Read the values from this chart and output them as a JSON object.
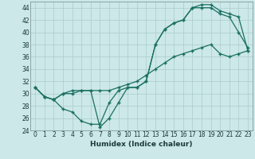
{
  "xlabel": "Humidex (Indice chaleur)",
  "bg_color": "#cce8e8",
  "grid_color": "#aacccc",
  "line_color": "#1a7060",
  "xlim": [
    -0.5,
    23.5
  ],
  "ylim": [
    24,
    45
  ],
  "xticks": [
    0,
    1,
    2,
    3,
    4,
    5,
    6,
    7,
    8,
    9,
    10,
    11,
    12,
    13,
    14,
    15,
    16,
    17,
    18,
    19,
    20,
    21,
    22,
    23
  ],
  "yticks": [
    24,
    26,
    28,
    30,
    32,
    34,
    36,
    38,
    40,
    42,
    44
  ],
  "line1_x": [
    0,
    1,
    2,
    3,
    4,
    5,
    6,
    7,
    8,
    9,
    10,
    11,
    12,
    13,
    14,
    15,
    16,
    17,
    18,
    19,
    20,
    21,
    22,
    23
  ],
  "line1_y": [
    31.0,
    29.5,
    29.0,
    30.0,
    30.0,
    30.5,
    30.5,
    24.5,
    26.0,
    28.5,
    31.0,
    31.0,
    32.0,
    38.0,
    40.5,
    41.5,
    42.0,
    44.0,
    44.0,
    44.0,
    43.0,
    42.5,
    40.0,
    37.5
  ],
  "line2_x": [
    0,
    1,
    2,
    3,
    4,
    5,
    6,
    7,
    8,
    9,
    10,
    11,
    12,
    13,
    14,
    15,
    16,
    17,
    18,
    19,
    20,
    21,
    22,
    23
  ],
  "line2_y": [
    31.0,
    29.5,
    29.0,
    27.5,
    27.0,
    25.5,
    25.0,
    25.0,
    28.5,
    30.5,
    31.0,
    31.0,
    32.0,
    38.0,
    40.5,
    41.5,
    42.0,
    44.0,
    44.5,
    44.5,
    43.5,
    43.0,
    42.5,
    37.0
  ],
  "line3_x": [
    0,
    1,
    2,
    3,
    4,
    5,
    6,
    7,
    8,
    9,
    10,
    11,
    12,
    13,
    14,
    15,
    16,
    17,
    18,
    19,
    20,
    21,
    22,
    23
  ],
  "line3_y": [
    31.0,
    29.5,
    29.0,
    30.0,
    30.5,
    30.5,
    30.5,
    30.5,
    30.5,
    31.0,
    31.5,
    32.0,
    33.0,
    34.0,
    35.0,
    36.0,
    36.5,
    37.0,
    37.5,
    38.0,
    36.5,
    36.0,
    36.5,
    37.0
  ]
}
